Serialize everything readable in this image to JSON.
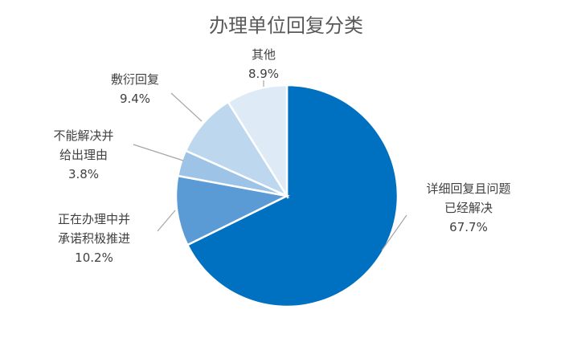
{
  "chart_data": {
    "type": "pie",
    "title": "办理单位回复分类",
    "slices": [
      {
        "label_lines": [
          "详细回复且问题",
          "已经解决"
        ],
        "pct_label": "67.7%",
        "value": 67.7,
        "color": "#0070c0"
      },
      {
        "label_lines": [
          "正在办理中并",
          "承诺积极推进"
        ],
        "pct_label": "10.2%",
        "value": 10.2,
        "color": "#5b9bd5"
      },
      {
        "label_lines": [
          "不能解决并",
          "给出理由"
        ],
        "pct_label": "3.8%",
        "value": 3.8,
        "color": "#9dc3e6"
      },
      {
        "label_lines": [
          "敷衍回复"
        ],
        "pct_label": "9.4%",
        "value": 9.4,
        "color": "#bdd7ee"
      },
      {
        "label_lines": [
          "其他"
        ],
        "pct_label": "8.9%",
        "value": 8.9,
        "color": "#deebf7"
      }
    ],
    "start_angle_deg": 0,
    "direction": "clockwise",
    "legend": "none",
    "data_labels": "outside-with-leader-lines"
  }
}
